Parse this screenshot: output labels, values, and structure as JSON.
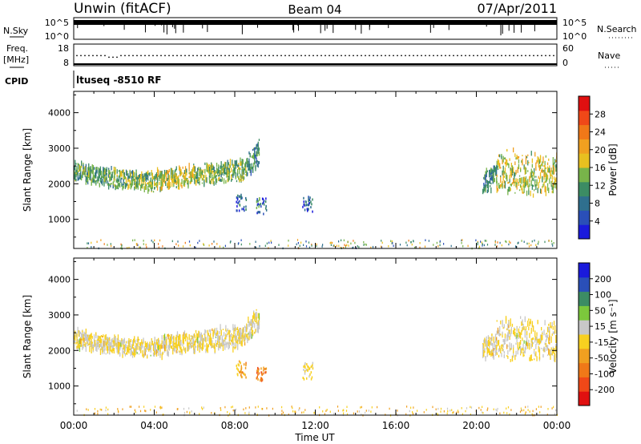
{
  "header": {
    "station": "Unwin (fitACF)",
    "beam": "Beam 04",
    "date": "07/Apr/2011"
  },
  "panels": {
    "nsky": {
      "label": "N.Sky",
      "ticks": [
        "10^5",
        "10^0"
      ]
    },
    "nsearch": {
      "label": "N.Search",
      "ticks": [
        "10^5",
        "10^0"
      ]
    },
    "freq": {
      "label": "Freq.",
      "unit": "[MHz]",
      "ticks": [
        "18",
        "8"
      ],
      "value_mhz": 12.5
    },
    "nave": {
      "label": "Nave",
      "ticks": [
        "60",
        "0"
      ],
      "value": 28
    },
    "cpid": {
      "label": "CPID",
      "program": "ltuseq -8510 RF"
    }
  },
  "colors": {
    "power": [
      "#1a1adc",
      "#2a4fb8",
      "#2f6f8e",
      "#3c8c64",
      "#78b44a",
      "#e8c020",
      "#f0a020",
      "#f07818",
      "#f04818",
      "#e01010"
    ],
    "velocity": [
      "#e01010",
      "#f04818",
      "#f07818",
      "#f0a020",
      "#f8d020",
      "#c8c8c8",
      "#7cc83c",
      "#3c8c64",
      "#2a4fb8",
      "#1a1adc"
    ]
  },
  "chart_data": [
    {
      "type": "heatmap",
      "quantity": "power",
      "ylabel": "Slant Range [km]",
      "ylim": [
        180,
        4600
      ],
      "yticks": [
        "4000",
        "3000",
        "2000",
        "1000"
      ],
      "colorbar": {
        "label": "Power [dB]",
        "ticks": [
          "28",
          "24",
          "20",
          "16",
          "12",
          "8",
          "4"
        ],
        "range": [
          0,
          32
        ]
      },
      "xlim": [
        0,
        24
      ],
      "segments": [
        {
          "start_h": 0.0,
          "end_h": 2.0,
          "center_km": [
            2350,
            2150
          ],
          "halfwidth_km": 250,
          "value": 12
        },
        {
          "start_h": 2.0,
          "end_h": 4.0,
          "center_km": [
            2150,
            2050
          ],
          "halfwidth_km": 240,
          "value": 14
        },
        {
          "start_h": 4.0,
          "end_h": 6.0,
          "center_km": [
            2100,
            2250
          ],
          "halfwidth_km": 260,
          "value": 16
        },
        {
          "start_h": 6.0,
          "end_h": 8.6,
          "center_km": [
            2250,
            2400
          ],
          "halfwidth_km": 280,
          "value": 14
        },
        {
          "start_h": 8.6,
          "end_h": 9.2,
          "center_km": [
            2500,
            2900
          ],
          "halfwidth_km": 350,
          "value": 10
        },
        {
          "start_h": 20.3,
          "end_h": 21.0,
          "center_km": [
            2000,
            2200
          ],
          "halfwidth_km": 300,
          "value": 10
        },
        {
          "start_h": 21.0,
          "end_h": 24.0,
          "center_km": [
            2350,
            2250
          ],
          "halfwidth_km": 550,
          "value": 16
        }
      ],
      "patches": [
        {
          "t_h": 9.3,
          "range_km": 1400,
          "value": 8
        },
        {
          "t_h": 8.3,
          "range_km": 1500,
          "value": 6
        },
        {
          "t_h": 11.6,
          "range_km": 1450,
          "value": 6
        }
      ],
      "near_range": {
        "start_h": 0,
        "end_h": 24,
        "range_km": [
          200,
          450
        ],
        "value": 14
      }
    },
    {
      "type": "heatmap",
      "quantity": "velocity",
      "ylabel": "Slant Range [km]",
      "ylim": [
        180,
        4600
      ],
      "yticks": [
        "4000",
        "3000",
        "2000",
        "1000"
      ],
      "colorbar": {
        "label": "Velocity [m s⁻¹]",
        "ticks": [
          "200",
          "100",
          "50",
          "15",
          "-15",
          "-50",
          "-100",
          "-200"
        ],
        "range": [
          -250,
          250
        ]
      },
      "xlim": [
        0,
        24
      ],
      "xticks": [
        "00:00",
        "04:00",
        "08:00",
        "12:00",
        "16:00",
        "20:00",
        "00:00"
      ],
      "xlabel": "Time UT",
      "segments": [
        {
          "start_h": 0.0,
          "end_h": 2.0,
          "center_km": [
            2350,
            2150
          ],
          "halfwidth_km": 250,
          "value": 0
        },
        {
          "start_h": 2.0,
          "end_h": 4.0,
          "center_km": [
            2150,
            2050
          ],
          "halfwidth_km": 240,
          "value": 0
        },
        {
          "start_h": 4.0,
          "end_h": 6.0,
          "center_km": [
            2100,
            2250
          ],
          "halfwidth_km": 260,
          "value": 0
        },
        {
          "start_h": 6.0,
          "end_h": 8.6,
          "center_km": [
            2250,
            2400
          ],
          "halfwidth_km": 280,
          "value": 0
        },
        {
          "start_h": 8.6,
          "end_h": 9.2,
          "center_km": [
            2500,
            2900
          ],
          "halfwidth_km": 350,
          "value": 0
        },
        {
          "start_h": 20.3,
          "end_h": 21.0,
          "center_km": [
            2000,
            2200
          ],
          "halfwidth_km": 300,
          "value": 0
        },
        {
          "start_h": 21.0,
          "end_h": 24.0,
          "center_km": [
            2350,
            2250
          ],
          "halfwidth_km": 550,
          "value": 0
        }
      ],
      "patches": [
        {
          "t_h": 9.3,
          "range_km": 1400,
          "value": -120
        },
        {
          "t_h": 8.3,
          "range_km": 1500,
          "value": -60
        },
        {
          "t_h": 11.6,
          "range_km": 1450,
          "value": 0
        }
      ],
      "near_range": {
        "start_h": 0,
        "end_h": 24,
        "range_km": [
          200,
          450
        ],
        "value": -40
      }
    }
  ]
}
